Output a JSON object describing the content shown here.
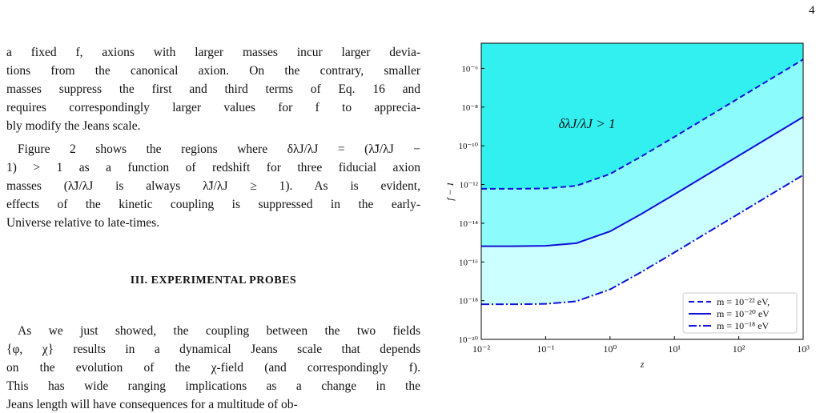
{
  "page_number": "4",
  "paragraphs": [
    {
      "lines": [
        "a fixed f, axions with larger masses incur larger devia-",
        "tions from the canonical axion. On the contrary, smaller",
        "masses suppress the first and third terms of Eq. 16 and",
        "requires correspondingly larger values for f to apprecia-",
        "bly modify the Jeans scale."
      ]
    },
    {
      "lines": [
        "Figure 2 shows the regions where δλJ/λJ = (λ̃J/λJ −",
        "1) > 1 as a function of redshift for three fiducial axion",
        "masses (λ̃J/λJ is always λ̃J/λJ ≥ 1).  As is evident,",
        "effects of the kinetic coupling is suppressed in the early-",
        "Universe relative to late-times."
      ]
    },
    {
      "lines": [
        "As we just showed, the coupling between the two fields",
        "{φ, χ} results in a dynamical Jeans scale that depends",
        "on the evolution of the χ-field (and correspondingly f).",
        "This has wide ranging implications as a change in the",
        "Jeans length will have consequences for a multitude of ob-"
      ]
    }
  ],
  "section_heading": "III.   EXPERIMENTAL PROBES",
  "chart_data": {
    "type": "line",
    "x": [
      0.01,
      0.03,
      0.1,
      0.3,
      1,
      3,
      10,
      30,
      100,
      300,
      1000
    ],
    "xlim": [
      0.01,
      1000
    ],
    "ylim": [
      1e-20,
      2e-05
    ],
    "xlog": true,
    "ylog": true,
    "xticks": [
      {
        "value": 0.01,
        "label": "10⁻²"
      },
      {
        "value": 0.1,
        "label": "10⁻¹"
      },
      {
        "value": 1,
        "label": "10⁰"
      },
      {
        "value": 10,
        "label": "10¹"
      },
      {
        "value": 100,
        "label": "10²"
      },
      {
        "value": 1000,
        "label": "10³"
      }
    ],
    "yticks": [
      {
        "value": 1e-20,
        "label": "10⁻²⁰"
      },
      {
        "value": 1e-18,
        "label": "10⁻¹⁸"
      },
      {
        "value": 1e-16,
        "label": "10⁻¹⁶"
      },
      {
        "value": 1e-14,
        "label": "10⁻¹⁴"
      },
      {
        "value": 1e-12,
        "label": "10⁻¹²"
      },
      {
        "value": 1e-10,
        "label": "10⁻¹⁰"
      },
      {
        "value": 1e-08,
        "label": "10⁻⁸"
      },
      {
        "value": 1e-06,
        "label": "10⁻⁶"
      }
    ],
    "xlabel": "z",
    "ylabel": "f − 1",
    "annotation": "δλJ/λJ > 1",
    "legend": "lower right",
    "series": [
      {
        "name": "m = 10⁻²² eV,",
        "color": "#1010d8",
        "fill": "#33f0f0",
        "dash": "dashed",
        "values": [
          6e-13,
          6e-13,
          6.3e-13,
          8.6e-13,
          3.5e-12,
          2.7e-11,
          2.9e-10,
          2.6e-09,
          2.9e-08,
          2.6e-07,
          2.9e-06
        ]
      },
      {
        "name": "m = 10⁻²⁰ eV",
        "color": "#1010d8",
        "fill": "#8cfbfb",
        "dash": "solid",
        "values": [
          6.5e-16,
          6.5e-16,
          6.8e-16,
          9.3e-16,
          3.8e-15,
          2.9e-14,
          3.1e-13,
          2.8e-12,
          3.1e-11,
          2.8e-10,
          3.1e-09
        ]
      },
      {
        "name": "m = 10⁻¹⁸ eV",
        "color": "#1010d8",
        "fill": "#ccffff",
        "dash": "dashdot",
        "values": [
          6.5e-19,
          6.5e-19,
          6.8e-19,
          9.3e-19,
          3.8e-18,
          2.9e-17,
          3.1e-16,
          2.8e-15,
          3.1e-14,
          2.8e-13,
          3.1e-12
        ]
      }
    ]
  }
}
